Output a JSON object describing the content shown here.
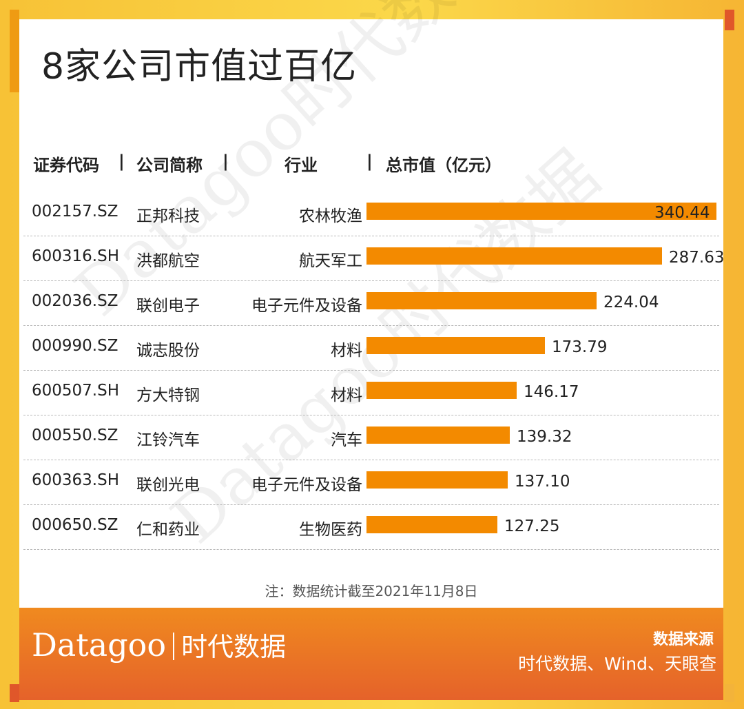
{
  "title": "8家公司市值过百亿",
  "watermark": "Datagoo时代数据",
  "headers": {
    "code": "证券代码",
    "name": "公司简称",
    "industry": "行业",
    "value": "总市值（亿元）",
    "separator": "|"
  },
  "chart_data": {
    "type": "bar",
    "orientation": "horizontal",
    "title": "8家公司市值过百亿",
    "categories": [
      "正邦科技",
      "洪都航空",
      "联创电子",
      "诚志股份",
      "方大特钢",
      "江铃汽车",
      "联创光电",
      "仁和药业"
    ],
    "codes": [
      "002157.SZ",
      "600316.SH",
      "002036.SZ",
      "000990.SZ",
      "600507.SH",
      "000550.SZ",
      "600363.SH",
      "000650.SZ"
    ],
    "industries": [
      "农林牧渔",
      "航天军工",
      "电子元件及设备",
      "材料",
      "材料",
      "汽车",
      "电子元件及设备",
      "生物医药"
    ],
    "values": [
      340.44,
      287.63,
      224.04,
      173.79,
      146.17,
      139.32,
      137.1,
      127.25
    ],
    "value_labels": [
      "340.44",
      "287.63",
      "224.04",
      "173.79",
      "146.17",
      "139.32",
      "137.10",
      "127.25"
    ],
    "ylabel": "总市值（亿元）",
    "bar_color": "#f38a00"
  },
  "note": "注：数据统计截至2021年11月8日",
  "footer": {
    "brand_en": "Datagoo",
    "brand_cn": "时代数据",
    "source_title": "数据来源",
    "source_text": "时代数据、Wind、天眼查"
  },
  "colors": {
    "bar": "#f38a00",
    "frame": "#f9cf43",
    "footer_top": "#f08a1f",
    "footer_bottom": "#e5622a"
  }
}
